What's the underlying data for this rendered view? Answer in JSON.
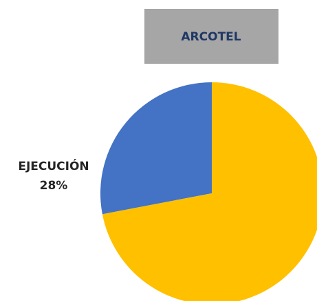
{
  "chart_data": {
    "type": "pie",
    "title": "ARCOTEL",
    "categories": [
      "EJECUCIÓN",
      null
    ],
    "values": [
      28,
      72
    ],
    "value_labels": [
      "28%",
      null
    ],
    "colors": [
      "#4472c4",
      "#ffc000"
    ]
  }
}
